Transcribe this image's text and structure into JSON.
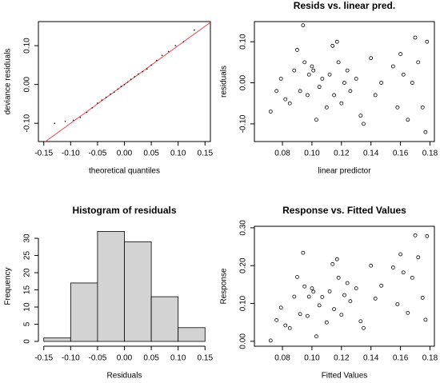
{
  "chart_data": [
    {
      "type": "qq",
      "x_label": "theoretical quantiles",
      "y_label": "deviance residuals",
      "x": [
        -0.13,
        -0.11,
        -0.095,
        -0.082,
        -0.07,
        -0.06,
        -0.05,
        -0.042,
        -0.034,
        -0.026,
        -0.019,
        -0.012,
        -0.006,
        0,
        0.006,
        0.012,
        0.019,
        0.026,
        0.034,
        0.042,
        0.05,
        0.06,
        0.07,
        0.082,
        0.095,
        0.11,
        0.13
      ],
      "values": [
        -0.1,
        -0.095,
        -0.092,
        -0.085,
        -0.072,
        -0.06,
        -0.048,
        -0.04,
        -0.033,
        -0.025,
        -0.02,
        -0.012,
        -0.005,
        0.0,
        0.006,
        0.013,
        0.02,
        0.027,
        0.033,
        0.04,
        0.05,
        0.062,
        0.075,
        0.085,
        0.1,
        0.11,
        0.14
      ],
      "color": "#000000",
      "reference_line_color": "#e8474f",
      "xlim": [
        -0.16,
        0.16
      ],
      "xticks": [
        -0.15,
        {
          "value": -0.1,
          "label": "-0.10"
        },
        -0.05,
        {
          "value": 0,
          "label": "0.00"
        },
        0.05,
        {
          "value": 0.1,
          "label": "0.10"
        },
        0.15
      ],
      "ylim": [
        -0.147,
        0.162
      ],
      "yticks": [
        {
          "value": -0.1,
          "label": "-0.10"
        },
        {
          "value": 0,
          "label": "0.00"
        },
        {
          "value": 0.1,
          "label": "0.10"
        }
      ]
    },
    {
      "type": "scatter",
      "title": "Resids vs. linear pred.",
      "x_label": "linear predictor",
      "y_label": "residuals",
      "x": [
        0.072,
        0.076,
        0.079,
        0.082,
        0.085,
        0.088,
        0.09,
        0.092,
        0.094,
        0.095,
        0.097,
        0.098,
        0.1,
        0.101,
        0.103,
        0.105,
        0.107,
        0.11,
        0.112,
        0.114,
        0.115,
        0.117,
        0.118,
        0.12,
        0.122,
        0.124,
        0.126,
        0.13,
        0.133,
        0.135,
        0.14,
        0.143,
        0.147,
        0.155,
        0.158,
        0.16,
        0.162,
        0.165,
        0.168,
        0.17,
        0.172,
        0.175,
        0.177,
        0.178
      ],
      "values": [
        -0.07,
        -0.02,
        0.01,
        -0.04,
        -0.05,
        0.03,
        0.08,
        -0.02,
        0.14,
        0.05,
        -0.03,
        0.02,
        0.04,
        0.03,
        -0.09,
        -0.01,
        0.01,
        -0.06,
        0.02,
        0.09,
        -0.03,
        0.1,
        0.05,
        -0.05,
        0.0,
        0.03,
        -0.02,
        0.01,
        -0.08,
        -0.1,
        0.06,
        -0.03,
        0.0,
        0.04,
        -0.06,
        0.07,
        0.02,
        -0.09,
        0.0,
        0.11,
        0.05,
        -0.06,
        -0.12,
        0.1
      ],
      "color": "#000000",
      "xlim": [
        0.061,
        0.183
      ],
      "xticks": [
        0.08,
        {
          "value": 0.1,
          "label": "0.10"
        },
        0.12,
        0.14,
        0.16,
        0.18
      ],
      "ylim": [
        -0.143,
        0.149
      ],
      "yticks": [
        {
          "value": -0.1,
          "label": "-0.10"
        },
        {
          "value": 0,
          "label": "0.00"
        },
        {
          "value": 0.1,
          "label": "0.10"
        }
      ]
    },
    {
      "type": "histogram",
      "title": "Histogram of residuals",
      "x_label": "Residuals",
      "y_label": "Frequency",
      "bins": [
        -0.15,
        -0.1,
        -0.05,
        0,
        0.05,
        0.1,
        0.15
      ],
      "values": [
        1,
        17,
        32,
        29,
        13,
        4
      ],
      "color": "#d3d3d3",
      "xlim": [
        -0.16,
        0.16
      ],
      "xticks": [
        -0.15,
        {
          "value": -0.1,
          "label": "-0.10"
        },
        -0.05,
        {
          "value": 0,
          "label": "0.00"
        },
        0.05,
        {
          "value": 0.1,
          "label": "0.10"
        },
        0.15
      ],
      "ylim": [
        -1.4,
        33.5
      ],
      "yticks": [
        0,
        5,
        10,
        15,
        20,
        25,
        30
      ]
    },
    {
      "type": "scatter",
      "title": "Response vs. Fitted Values",
      "x_label": "Fitted Values",
      "y_label": "Response",
      "x": [
        0.072,
        0.076,
        0.079,
        0.082,
        0.085,
        0.088,
        0.09,
        0.092,
        0.094,
        0.095,
        0.097,
        0.098,
        0.1,
        0.101,
        0.103,
        0.105,
        0.107,
        0.11,
        0.112,
        0.114,
        0.115,
        0.117,
        0.118,
        0.12,
        0.122,
        0.124,
        0.126,
        0.13,
        0.133,
        0.135,
        0.14,
        0.143,
        0.147,
        0.155,
        0.158,
        0.16,
        0.162,
        0.165,
        0.168,
        0.17,
        0.172,
        0.175,
        0.177,
        0.178
      ],
      "values": [
        0.002,
        0.056,
        0.089,
        0.042,
        0.035,
        0.118,
        0.17,
        0.072,
        0.234,
        0.145,
        0.067,
        0.118,
        0.14,
        0.131,
        0.013,
        0.095,
        0.117,
        0.05,
        0.132,
        0.204,
        0.085,
        0.217,
        0.168,
        0.07,
        0.122,
        0.154,
        0.106,
        0.14,
        0.053,
        0.035,
        0.2,
        0.113,
        0.147,
        0.195,
        0.098,
        0.23,
        0.182,
        0.075,
        0.168,
        0.28,
        0.222,
        0.115,
        0.057,
        0.278
      ],
      "color": "#000000",
      "xlim": [
        0.061,
        0.183
      ],
      "xticks": [
        0.08,
        {
          "value": 0.1,
          "label": "0.10"
        },
        0.12,
        0.14,
        0.16,
        0.18
      ],
      "ylim": [
        -0.013,
        0.304
      ],
      "yticks": [
        {
          "value": 0,
          "label": "0.00"
        },
        {
          "value": 0.1,
          "label": "0.10"
        },
        {
          "value": 0.2,
          "label": "0.20"
        },
        {
          "value": 0.3,
          "label": "0.30"
        }
      ]
    }
  ]
}
